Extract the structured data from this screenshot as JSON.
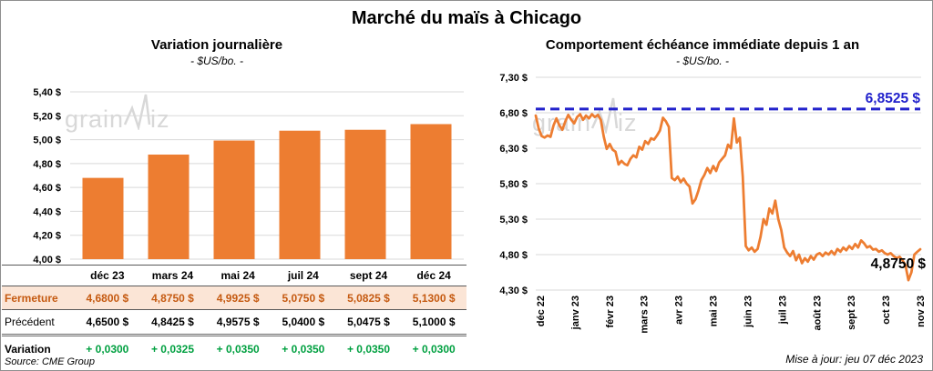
{
  "title": "Marché du maïs à Chicago",
  "update_note": "Mise à jour: jeu 07 déc 2023",
  "source_note": "Source: CME Group",
  "watermark": {
    "part1": "grain",
    "part2": "iz"
  },
  "colors": {
    "series_orange": "#ED7D31",
    "reference_blue": "#2222CC",
    "variation_green": "#00A040",
    "close_row_bg": "#FBE5D6",
    "close_row_text": "#C55A11",
    "gridline": "#D9D9D9",
    "axis_text": "#000000",
    "watermark_gray": "#D8D8D8"
  },
  "chart_data": [
    {
      "type": "bar",
      "title": "Variation journalière",
      "subtitle": "- $US/bo. -",
      "categories": [
        "déc 23",
        "mars 24",
        "mai 24",
        "juil 24",
        "sept 24",
        "déc 24"
      ],
      "values": [
        4.68,
        4.875,
        4.9925,
        5.075,
        5.0825,
        5.13
      ],
      "ylim": [
        4.0,
        5.4
      ],
      "ytick_values": [
        5.4,
        5.2,
        5.0,
        4.8,
        4.6,
        4.4,
        4.2,
        4.0
      ],
      "ytick_labels": [
        "5,40 $",
        "5,20 $",
        "5,00 $",
        "4,80 $",
        "4,60 $",
        "4,40 $",
        "4,20 $",
        "4,00 $"
      ],
      "bar_color": "#ED7D31",
      "grid": true,
      "legend": false
    },
    {
      "type": "line",
      "title": "Comportement échéance immédiate depuis 1 an",
      "subtitle": "- $US/bo. -",
      "x_labels": [
        "déc 22",
        "janv 23",
        "févr 23",
        "mars 23",
        "avr 23",
        "mai 23",
        "juin 23",
        "juil 23",
        "août 23",
        "sept 23",
        "oct 23",
        "nov 23"
      ],
      "values": [
        6.76,
        6.58,
        6.47,
        6.45,
        6.48,
        6.46,
        6.62,
        6.72,
        6.62,
        6.56,
        6.68,
        6.77,
        6.7,
        6.65,
        6.74,
        6.78,
        6.7,
        6.76,
        6.72,
        6.78,
        6.74,
        6.77,
        6.7,
        6.46,
        6.29,
        6.36,
        6.28,
        6.25,
        6.07,
        6.12,
        6.08,
        6.06,
        6.15,
        6.2,
        6.17,
        6.32,
        6.28,
        6.4,
        6.36,
        6.44,
        6.42,
        6.48,
        6.55,
        6.73,
        6.68,
        6.6,
        5.88,
        5.85,
        5.9,
        5.82,
        5.87,
        5.8,
        5.76,
        5.52,
        5.58,
        5.7,
        5.85,
        5.92,
        6.02,
        5.95,
        6.05,
        5.98,
        6.1,
        6.15,
        6.2,
        6.35,
        6.3,
        6.72,
        6.38,
        6.45,
        5.9,
        4.92,
        4.86,
        4.9,
        4.84,
        4.88,
        5.05,
        5.3,
        5.22,
        5.45,
        5.38,
        5.56,
        5.3,
        5.15,
        4.9,
        4.83,
        4.78,
        4.85,
        4.72,
        4.8,
        4.68,
        4.75,
        4.7,
        4.78,
        4.73,
        4.8,
        4.82,
        4.78,
        4.83,
        4.8,
        4.85,
        4.8,
        4.88,
        4.84,
        4.9,
        4.86,
        4.92,
        4.88,
        4.95,
        4.9,
        5.0,
        4.96,
        4.9,
        4.92,
        4.87,
        4.88,
        4.84,
        4.86,
        4.82,
        4.8,
        4.82,
        4.78,
        4.75,
        4.77,
        4.72,
        4.65,
        4.44,
        4.55,
        4.8,
        4.84,
        4.875
      ],
      "ylim": [
        4.3,
        7.3
      ],
      "ytick_values": [
        7.3,
        6.8,
        6.3,
        5.8,
        5.3,
        4.8,
        4.3
      ],
      "ytick_labels": [
        "7,30 $",
        "6,80 $",
        "6,30 $",
        "5,80 $",
        "5,30 $",
        "4,80 $",
        "4,30 $"
      ],
      "line_color": "#ED7D31",
      "reference_line": {
        "value": 6.8525,
        "label": "6,8525 $",
        "color": "#2222CC",
        "style": "dashed"
      },
      "last_value": 4.875,
      "last_value_label": "4,8750 $",
      "grid": true,
      "legend": false
    },
    {
      "type": "table",
      "header": [
        "",
        "déc 23",
        "mars 24",
        "mai 24",
        "juil 24",
        "sept 24",
        "déc 24"
      ],
      "rows": [
        {
          "label": "Fermeture",
          "style": "close",
          "values": [
            "4,6800 $",
            "4,8750 $",
            "4,9925 $",
            "5,0750 $",
            "5,0825 $",
            "5,1300 $"
          ]
        },
        {
          "label": "Précédent",
          "style": "previous",
          "values": [
            "4,6500 $",
            "4,8425 $",
            "4,9575 $",
            "5,0400 $",
            "5,0475 $",
            "5,1000 $"
          ]
        },
        {
          "label": "Variation",
          "style": "variation",
          "values": [
            "+ 0,0300",
            "+ 0,0325",
            "+ 0,0350",
            "+ 0,0350",
            "+ 0,0350",
            "+ 0,0300"
          ]
        }
      ]
    }
  ]
}
